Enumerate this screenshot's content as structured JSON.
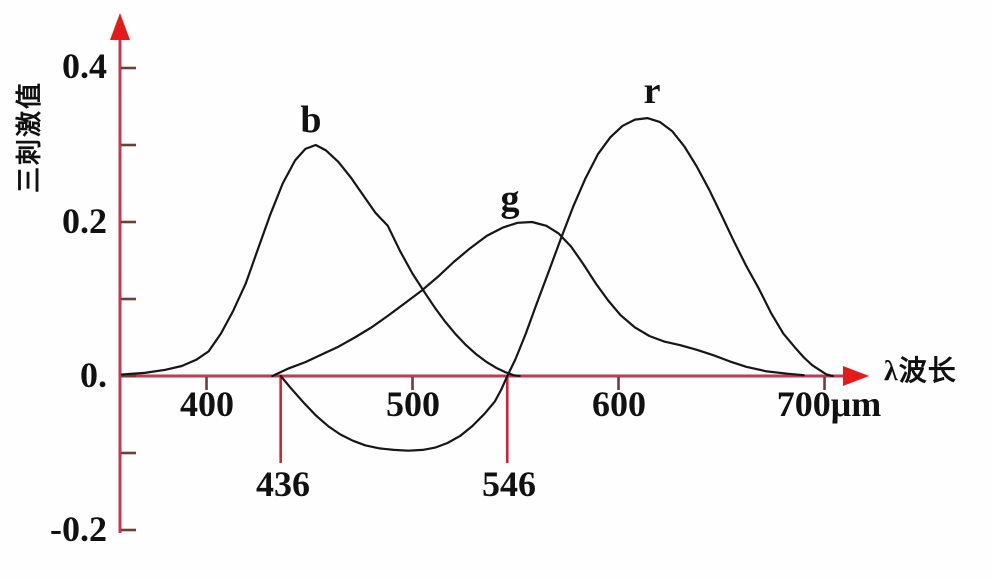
{
  "chart_data": {
    "type": "line",
    "title": "",
    "xlabel": "λ波长",
    "ylabel": "三刺激值",
    "xlim": [
      358,
      730
    ],
    "ylim": [
      -0.25,
      0.46
    ],
    "grid": false,
    "legend_position": "none",
    "x_ticks": [
      {
        "value": 400,
        "label": "400"
      },
      {
        "value": 500,
        "label": "500"
      },
      {
        "value": 600,
        "label": "600"
      },
      {
        "value": 700,
        "label": "700μm"
      }
    ],
    "y_ticks": [
      {
        "value": 0.4,
        "label": "0.4"
      },
      {
        "value": 0.3,
        "label": ""
      },
      {
        "value": 0.2,
        "label": "0.2"
      },
      {
        "value": 0.1,
        "label": ""
      },
      {
        "value": 0,
        "label": "0."
      },
      {
        "value": -0.1,
        "label": ""
      },
      {
        "value": -0.2,
        "label": "-0.2"
      }
    ],
    "droplines": [
      {
        "x": 436,
        "label": "436"
      },
      {
        "x": 546,
        "label": "546"
      }
    ],
    "series": [
      {
        "name": "b",
        "points": [
          [
            359,
            0.002
          ],
          [
            370,
            0.004
          ],
          [
            380,
            0.008
          ],
          [
            388,
            0.013
          ],
          [
            395,
            0.021
          ],
          [
            401,
            0.032
          ],
          [
            407,
            0.055
          ],
          [
            413,
            0.085
          ],
          [
            419,
            0.12
          ],
          [
            425,
            0.165
          ],
          [
            431,
            0.21
          ],
          [
            437,
            0.25
          ],
          [
            443,
            0.28
          ],
          [
            448,
            0.295
          ],
          [
            453,
            0.3
          ],
          [
            458,
            0.293
          ],
          [
            464,
            0.278
          ],
          [
            470,
            0.258
          ],
          [
            476,
            0.235
          ],
          [
            482,
            0.212
          ],
          [
            488,
            0.195
          ],
          [
            494,
            0.162
          ],
          [
            500,
            0.133
          ],
          [
            506,
            0.108
          ],
          [
            511,
            0.088
          ],
          [
            516,
            0.07
          ],
          [
            521,
            0.054
          ],
          [
            526,
            0.04
          ],
          [
            531,
            0.028
          ],
          [
            536,
            0.018
          ],
          [
            541,
            0.01
          ],
          [
            545,
            0.005
          ],
          [
            549,
            0.001
          ],
          [
            552,
            0
          ]
        ]
      },
      {
        "name": "g",
        "points": [
          [
            432,
            0
          ],
          [
            440,
            0.01
          ],
          [
            448,
            0.018
          ],
          [
            456,
            0.028
          ],
          [
            464,
            0.038
          ],
          [
            472,
            0.05
          ],
          [
            480,
            0.063
          ],
          [
            488,
            0.078
          ],
          [
            496,
            0.094
          ],
          [
            504,
            0.11
          ],
          [
            512,
            0.128
          ],
          [
            520,
            0.148
          ],
          [
            528,
            0.166
          ],
          [
            536,
            0.182
          ],
          [
            544,
            0.193
          ],
          [
            551,
            0.199
          ],
          [
            558,
            0.2
          ],
          [
            565,
            0.195
          ],
          [
            571,
            0.185
          ],
          [
            577,
            0.168
          ],
          [
            583,
            0.145
          ],
          [
            589,
            0.12
          ],
          [
            595,
            0.098
          ],
          [
            601,
            0.079
          ],
          [
            608,
            0.063
          ],
          [
            615,
            0.052
          ],
          [
            622,
            0.045
          ],
          [
            630,
            0.04
          ],
          [
            638,
            0.034
          ],
          [
            646,
            0.027
          ],
          [
            654,
            0.019
          ],
          [
            662,
            0.012
          ],
          [
            672,
            0.006
          ],
          [
            682,
            0.003
          ],
          [
            690,
            0.001
          ]
        ]
      },
      {
        "name": "r",
        "points": [
          [
            436,
            0
          ],
          [
            441,
            -0.016
          ],
          [
            447,
            -0.034
          ],
          [
            453,
            -0.051
          ],
          [
            459,
            -0.065
          ],
          [
            465,
            -0.076
          ],
          [
            471,
            -0.084
          ],
          [
            477,
            -0.09
          ],
          [
            484,
            -0.094
          ],
          [
            491,
            -0.096
          ],
          [
            498,
            -0.097
          ],
          [
            505,
            -0.096
          ],
          [
            511,
            -0.093
          ],
          [
            517,
            -0.087
          ],
          [
            523,
            -0.078
          ],
          [
            529,
            -0.065
          ],
          [
            535,
            -0.049
          ],
          [
            540,
            -0.033
          ],
          [
            543,
            -0.018
          ],
          [
            546,
            0
          ],
          [
            550,
            0.022
          ],
          [
            555,
            0.055
          ],
          [
            560,
            0.092
          ],
          [
            566,
            0.135
          ],
          [
            572,
            0.178
          ],
          [
            578,
            0.22
          ],
          [
            584,
            0.257
          ],
          [
            590,
            0.288
          ],
          [
            596,
            0.31
          ],
          [
            602,
            0.325
          ],
          [
            608,
            0.333
          ],
          [
            614,
            0.335
          ],
          [
            620,
            0.33
          ],
          [
            626,
            0.318
          ],
          [
            632,
            0.298
          ],
          [
            638,
            0.272
          ],
          [
            644,
            0.242
          ],
          [
            650,
            0.209
          ],
          [
            656,
            0.175
          ],
          [
            662,
            0.143
          ],
          [
            668,
            0.114
          ],
          [
            674,
            0.082
          ],
          [
            680,
            0.055
          ],
          [
            686,
            0.036
          ],
          [
            690,
            0.024
          ],
          [
            694,
            0.014
          ],
          [
            698,
            0.007
          ],
          [
            701,
            0.002
          ],
          [
            704,
            0
          ]
        ]
      }
    ],
    "colors": {
      "axis": "#bf3a52",
      "arrow": "#e31b1b",
      "tick": "#6b4038",
      "dropline": "#cf2438",
      "curve": "#161616",
      "text": "#111111",
      "background": "#fefefe"
    }
  }
}
